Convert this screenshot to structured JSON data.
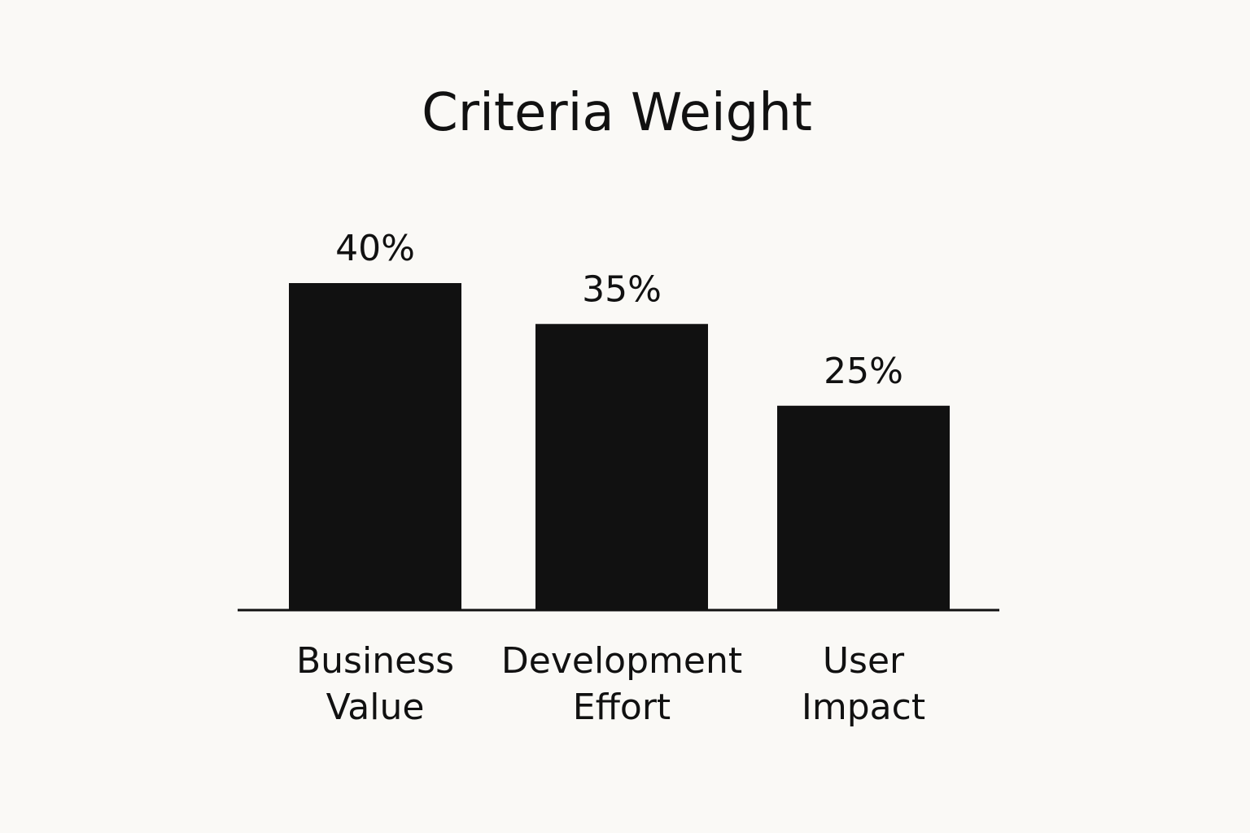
{
  "chart_data": {
    "type": "bar",
    "title": "Criteria Weight",
    "categories": [
      [
        "Business",
        "Value"
      ],
      [
        "Development",
        "Effort"
      ],
      [
        "User",
        "Impact"
      ]
    ],
    "values": [
      40,
      35,
      25
    ],
    "value_labels": [
      "40%",
      "35%",
      "25%"
    ],
    "ylim": [
      0,
      45
    ],
    "grid": false,
    "colors": {
      "bar": "#111111",
      "background": "#faf9f6",
      "text": "#111111",
      "axis": "#111111"
    }
  }
}
